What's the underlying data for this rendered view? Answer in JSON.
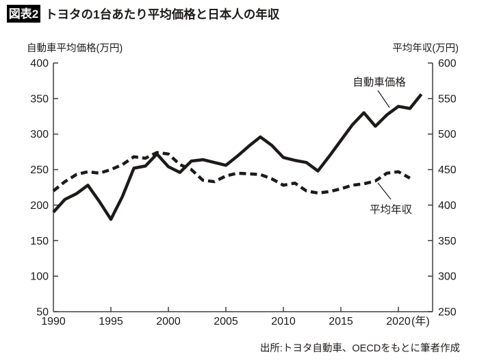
{
  "header": {
    "badge": "図表2",
    "title": "トヨタの1台あたり平均価格と日本人の年収"
  },
  "axis_titles": {
    "left": "自動車平均価格(万円)",
    "right": "平均年収(万円)"
  },
  "annotations": {
    "price_label": "自動車価格",
    "income_label": "平均年収"
  },
  "source": "出所:トヨタ自動車、OECDをもとに筆者作成",
  "colors": {
    "line": "#1d1a19",
    "axis": "#403c3b",
    "text": "#1d1a19",
    "badge_bg": "#000000",
    "badge_text": "#ffffff",
    "background": "#ffffff"
  },
  "chart_data": {
    "type": "line",
    "title": "トヨタの1台あたり平均価格と日本人の年収",
    "grid": false,
    "legend_position": "inline-annotations",
    "x_tick_years": [
      1990,
      1995,
      2000,
      2005,
      2010,
      2015,
      2020
    ],
    "x_unit_suffix": "(年)",
    "left_axis": {
      "label": "自動車平均価格(万円)",
      "min": 50,
      "max": 400,
      "tick_step": 50,
      "ticks": [
        400,
        350,
        300,
        250,
        200,
        150,
        100,
        50
      ]
    },
    "right_axis": {
      "label": "平均年収(万円)",
      "min": 250,
      "max": 600,
      "tick_step": 50,
      "ticks": [
        600,
        550,
        500,
        450,
        400,
        350,
        300,
        250
      ]
    },
    "series": [
      {
        "name": "自動車価格",
        "axis": "left",
        "style": "solid",
        "years": [
          1990,
          1991,
          1992,
          1993,
          1994,
          1995,
          1996,
          1997,
          1998,
          1999,
          2000,
          2001,
          2002,
          2003,
          2004,
          2005,
          2006,
          2007,
          2008,
          2009,
          2010,
          2011,
          2012,
          2013,
          2014,
          2015,
          2016,
          2017,
          2018,
          2019,
          2020,
          2021,
          2022
        ],
        "values": [
          190,
          208,
          216,
          228,
          205,
          180,
          212,
          252,
          255,
          272,
          254,
          246,
          262,
          264,
          260,
          256,
          269,
          283,
          296,
          284,
          267,
          263,
          260,
          248,
          269,
          291,
          313,
          330,
          311,
          327,
          339,
          336,
          356
        ]
      },
      {
        "name": "平均年収",
        "axis": "right",
        "style": "dashed",
        "years": [
          1990,
          1991,
          1992,
          1993,
          1994,
          1995,
          1996,
          1997,
          1998,
          1999,
          2000,
          2001,
          2002,
          2003,
          2004,
          2005,
          2006,
          2007,
          2008,
          2009,
          2010,
          2011,
          2012,
          2013,
          2014,
          2015,
          2016,
          2017,
          2018,
          2019,
          2020,
          2021
        ],
        "values": [
          420,
          433,
          443,
          447,
          445,
          450,
          457,
          468,
          466,
          474,
          472,
          457,
          450,
          435,
          433,
          441,
          445,
          444,
          443,
          437,
          428,
          431,
          420,
          417,
          419,
          423,
          428,
          430,
          434,
          445,
          447,
          438
        ]
      }
    ]
  }
}
